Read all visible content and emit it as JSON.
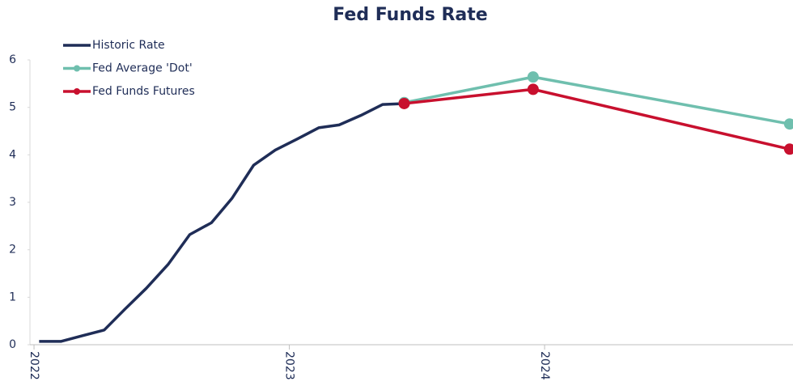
{
  "chart_data": {
    "type": "line",
    "title": "Fed Funds Rate",
    "xlim": [
      2021.984,
      2024.973
    ],
    "xticks": [
      2022,
      2023,
      2024
    ],
    "ylim": [
      0,
      6
    ],
    "yticks": [
      0,
      1,
      2,
      3,
      4,
      5,
      6
    ],
    "legend": "top-left",
    "series": [
      {
        "name": "Historic Rate",
        "color": "#1f2d57",
        "markers": false,
        "x": [
          2022.02,
          2022.105,
          2022.19,
          2022.275,
          2022.36,
          2022.44,
          2022.525,
          2022.61,
          2022.695,
          2022.775,
          2022.86,
          2022.945,
          2023.03,
          2023.115,
          2023.195,
          2023.28,
          2023.365,
          2023.45
        ],
        "values": [
          0.07,
          0.07,
          0.19,
          0.31,
          0.77,
          1.19,
          1.69,
          2.32,
          2.57,
          3.08,
          3.78,
          4.1,
          4.33,
          4.57,
          4.63,
          4.83,
          5.06,
          5.08
        ]
      },
      {
        "name": "Fed Average 'Dot'",
        "color": "#6fbfae",
        "markers": true,
        "x": [
          2023.45,
          2023.955,
          2024.96
        ],
        "values": [
          5.1,
          5.64,
          4.65
        ]
      },
      {
        "name": "Fed Funds Futures",
        "color": "#c8102e",
        "markers": true,
        "x": [
          2023.45,
          2023.955,
          2024.96
        ],
        "values": [
          5.08,
          5.38,
          4.12
        ]
      }
    ]
  }
}
